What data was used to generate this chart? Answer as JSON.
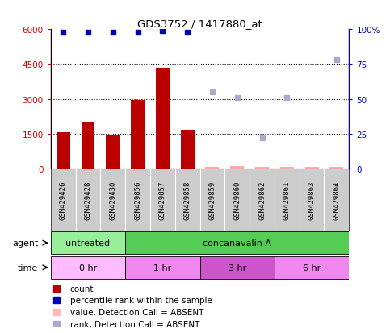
{
  "title": "GDS3752 / 1417880_at",
  "samples": [
    "GSM429426",
    "GSM429428",
    "GSM429430",
    "GSM429856",
    "GSM429857",
    "GSM429858",
    "GSM429859",
    "GSM429860",
    "GSM429862",
    "GSM429861",
    "GSM429863",
    "GSM429864"
  ],
  "count_values": [
    1550,
    2000,
    1450,
    2950,
    4350,
    1650,
    80,
    120,
    80,
    80,
    80,
    80
  ],
  "count_absent": [
    false,
    false,
    false,
    false,
    false,
    false,
    true,
    true,
    true,
    true,
    true,
    true
  ],
  "rank_values": [
    98,
    98,
    98,
    98,
    99,
    98,
    55,
    51,
    22,
    51,
    null,
    78
  ],
  "rank_absent": [
    false,
    false,
    false,
    false,
    false,
    false,
    true,
    true,
    true,
    true,
    true,
    true
  ],
  "ylim_left": [
    0,
    6000
  ],
  "ylim_right": [
    0,
    100
  ],
  "yticks_left": [
    0,
    1500,
    3000,
    4500,
    6000
  ],
  "ytick_labels_left": [
    "0",
    "1500",
    "3000",
    "4500",
    "6000"
  ],
  "yticks_right": [
    0,
    25,
    50,
    75,
    100
  ],
  "ytick_labels_right": [
    "0",
    "25",
    "50",
    "75",
    "100%"
  ],
  "bar_color_present": "#bb0000",
  "bar_color_absent": "#ffaaaa",
  "rank_color_present": "#0000bb",
  "rank_color_absent": "#aaaacc",
  "agent_groups": [
    {
      "label": "untreated",
      "start": 0,
      "end": 3,
      "color": "#99ee99"
    },
    {
      "label": "concanavalin A",
      "start": 3,
      "end": 12,
      "color": "#55cc55"
    }
  ],
  "time_groups": [
    {
      "label": "0 hr",
      "start": 0,
      "end": 3,
      "color": "#ffbbff"
    },
    {
      "label": "1 hr",
      "start": 3,
      "end": 6,
      "color": "#ee88ee"
    },
    {
      "label": "3 hr",
      "start": 6,
      "end": 9,
      "color": "#cc55cc"
    },
    {
      "label": "6 hr",
      "start": 9,
      "end": 12,
      "color": "#ee88ee"
    }
  ],
  "legend_items": [
    {
      "label": "count",
      "color": "#bb0000"
    },
    {
      "label": "percentile rank within the sample",
      "color": "#0000bb"
    },
    {
      "label": "value, Detection Call = ABSENT",
      "color": "#ffbbbb"
    },
    {
      "label": "rank, Detection Call = ABSENT",
      "color": "#aaaacc"
    }
  ],
  "background_color": "#ffffff",
  "sample_box_color": "#cccccc",
  "grid_color": "#000000"
}
